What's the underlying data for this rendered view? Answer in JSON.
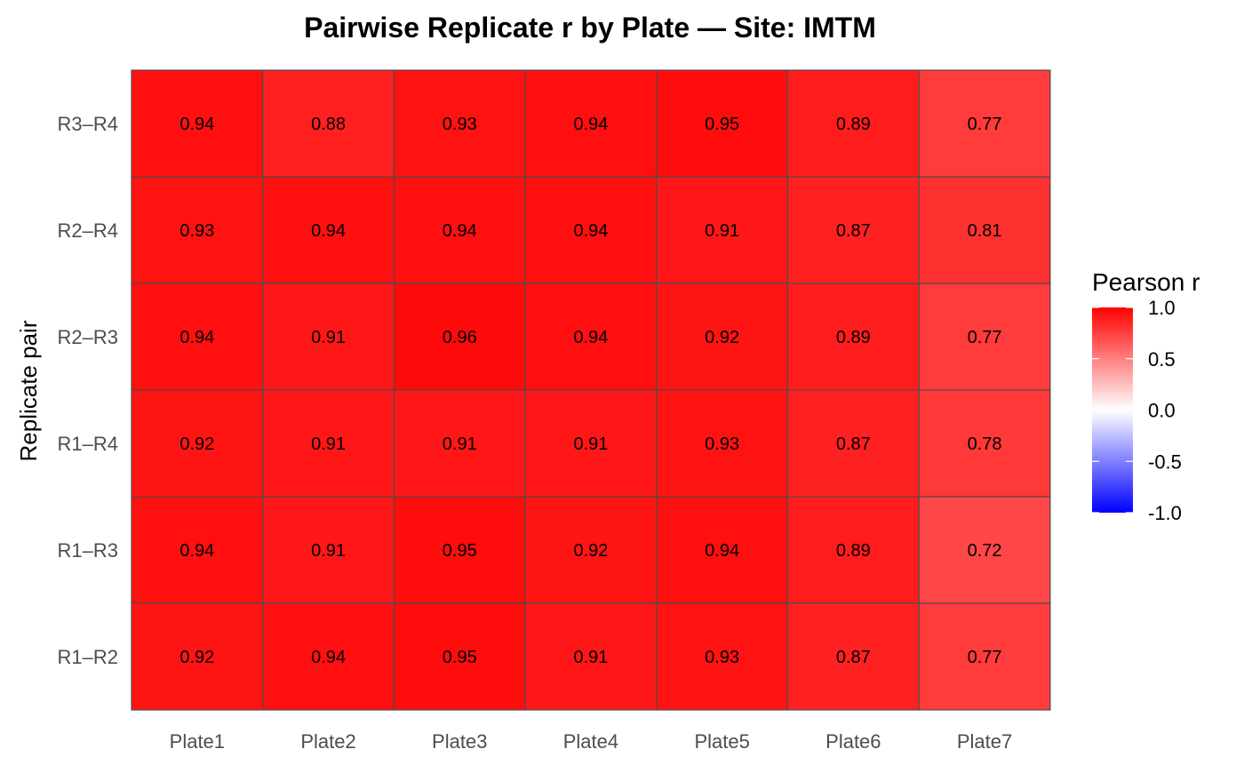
{
  "chart_data": {
    "type": "heatmap",
    "title": "Pairwise Replicate r by Plate — Site: IMTM",
    "xlabel": "",
    "ylabel": "Replicate pair",
    "x_categories": [
      "Plate1",
      "Plate2",
      "Plate3",
      "Plate4",
      "Plate5",
      "Plate6",
      "Plate7"
    ],
    "y_categories": [
      "R3–R4",
      "R2–R4",
      "R2–R3",
      "R1–R4",
      "R1–R3",
      "R1–R2"
    ],
    "values": [
      [
        0.94,
        0.88,
        0.93,
        0.94,
        0.95,
        0.89,
        0.77
      ],
      [
        0.93,
        0.94,
        0.94,
        0.94,
        0.91,
        0.87,
        0.81
      ],
      [
        0.94,
        0.91,
        0.96,
        0.94,
        0.92,
        0.89,
        0.77
      ],
      [
        0.92,
        0.91,
        0.91,
        0.91,
        0.93,
        0.87,
        0.78
      ],
      [
        0.94,
        0.91,
        0.95,
        0.92,
        0.94,
        0.89,
        0.72
      ],
      [
        0.92,
        0.94,
        0.95,
        0.91,
        0.93,
        0.87,
        0.77
      ]
    ],
    "cell_labels": [
      [
        "0.94",
        "0.88",
        "0.93",
        "0.94",
        "0.95",
        "0.89",
        "0.77"
      ],
      [
        "0.93",
        "0.94",
        "0.94",
        "0.94",
        "0.91",
        "0.87",
        "0.81"
      ],
      [
        "0.94",
        "0.91",
        "0.96",
        "0.94",
        "0.92",
        "0.89",
        "0.77"
      ],
      [
        "0.92",
        "0.91",
        "0.91",
        "0.91",
        "0.93",
        "0.87",
        "0.78"
      ],
      [
        "0.94",
        "0.91",
        "0.95",
        "0.92",
        "0.94",
        "0.89",
        "0.72"
      ],
      [
        "0.92",
        "0.94",
        "0.95",
        "0.91",
        "0.93",
        "0.87",
        "0.77"
      ]
    ],
    "legend": {
      "title": "Pearson r",
      "ticks": [
        1.0,
        0.5,
        0.0,
        -0.5,
        -1.0
      ],
      "tick_labels": [
        "1.0",
        "0.5",
        "0.0",
        "-0.5",
        "-1.0"
      ],
      "placement": "right"
    },
    "colorscale": {
      "low": "#0000ff",
      "mid": "#ffffff",
      "high": "#ff0000",
      "limits": [
        -1.0,
        1.0
      ]
    },
    "grid": false
  }
}
